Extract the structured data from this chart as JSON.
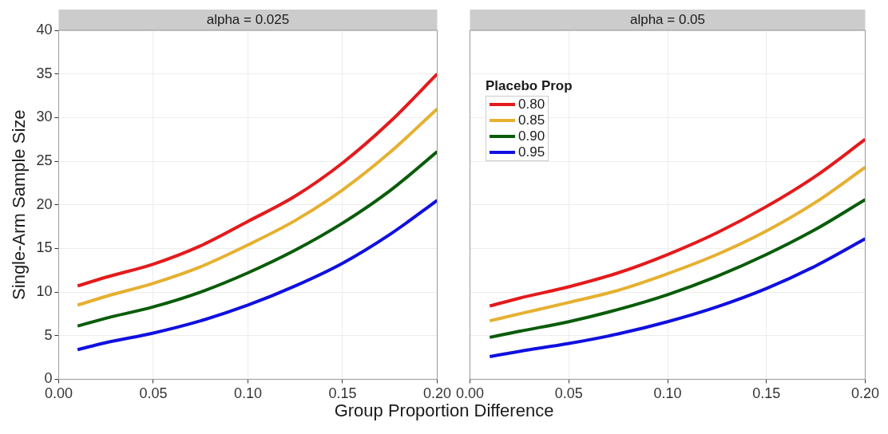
{
  "chart_data": [
    {
      "type": "line",
      "title": "alpha = 0.025",
      "ylabel": "Single-Arm Sample Size",
      "xlabel": "Group Proportion Difference",
      "x": [
        0.01,
        0.025,
        0.05,
        0.075,
        0.1,
        0.125,
        0.15,
        0.175,
        0.2
      ],
      "xlim": [
        0,
        0.2
      ],
      "xticks": [
        {
          "value": 0,
          "label": "0.00"
        },
        {
          "value": 0.05,
          "label": "0.05"
        },
        {
          "value": 0.1,
          "label": "0.10"
        },
        {
          "value": 0.15,
          "label": "0.15"
        },
        {
          "value": 0.2,
          "label": "0.20"
        }
      ],
      "ylim": [
        0,
        40
      ],
      "yticks": [
        0,
        5,
        10,
        15,
        20,
        25,
        30,
        35,
        40
      ],
      "grid": true,
      "legend": false,
      "marker": "none",
      "line_style": "solid",
      "series": [
        {
          "color": "#e41a1c",
          "values": [
            10.7,
            11.7,
            13.2,
            15.3,
            18.1,
            21,
            24.8,
            29.5,
            35
          ]
        },
        {
          "color": "#e6b030",
          "values": [
            8.5,
            9.5,
            11,
            12.9,
            15.4,
            18.2,
            21.7,
            26,
            31
          ]
        },
        {
          "color": "#0a5c0a",
          "values": [
            6.1,
            7,
            8.3,
            10,
            12.2,
            14.8,
            17.9,
            21.6,
            26.1
          ]
        },
        {
          "color": "#1010e0",
          "values": [
            3.4,
            4.2,
            5.3,
            6.7,
            8.5,
            10.7,
            13.3,
            16.6,
            20.5
          ]
        }
      ]
    },
    {
      "type": "line",
      "title": "alpha = 0.05",
      "legend_title": "Placebo Prop",
      "x": [
        0.01,
        0.025,
        0.05,
        0.075,
        0.1,
        0.125,
        0.15,
        0.175,
        0.2
      ],
      "xlim": [
        0,
        0.2
      ],
      "xticks": [
        {
          "value": 0,
          "label": "0.00"
        },
        {
          "value": 0.05,
          "label": "0.05"
        },
        {
          "value": 0.1,
          "label": "0.10"
        },
        {
          "value": 0.15,
          "label": "0.15"
        },
        {
          "value": 0.2,
          "label": "0.20"
        }
      ],
      "ylim": [
        0,
        40
      ],
      "yticks": [
        0,
        5,
        10,
        15,
        20,
        25,
        30,
        35,
        40
      ],
      "tick_labels": "x",
      "grid": true,
      "legend": "top left",
      "marker": "none",
      "line_style": "solid",
      "series": [
        {
          "name": "0.80",
          "color": "#e41a1c",
          "values": [
            8.4,
            9.3,
            10.6,
            12.2,
            14.3,
            16.8,
            19.8,
            23.3,
            27.5
          ]
        },
        {
          "name": "0.85",
          "color": "#e6b030",
          "values": [
            6.7,
            7.5,
            8.8,
            10.2,
            12.1,
            14.3,
            17,
            20.3,
            24.3
          ]
        },
        {
          "name": "0.90",
          "color": "#0a5c0a",
          "values": [
            4.8,
            5.5,
            6.6,
            8,
            9.7,
            11.8,
            14.3,
            17.2,
            20.6
          ]
        },
        {
          "name": "0.95",
          "color": "#1010e0",
          "values": [
            2.6,
            3.2,
            4.1,
            5.2,
            6.6,
            8.3,
            10.4,
            13,
            16.1
          ]
        }
      ]
    }
  ]
}
